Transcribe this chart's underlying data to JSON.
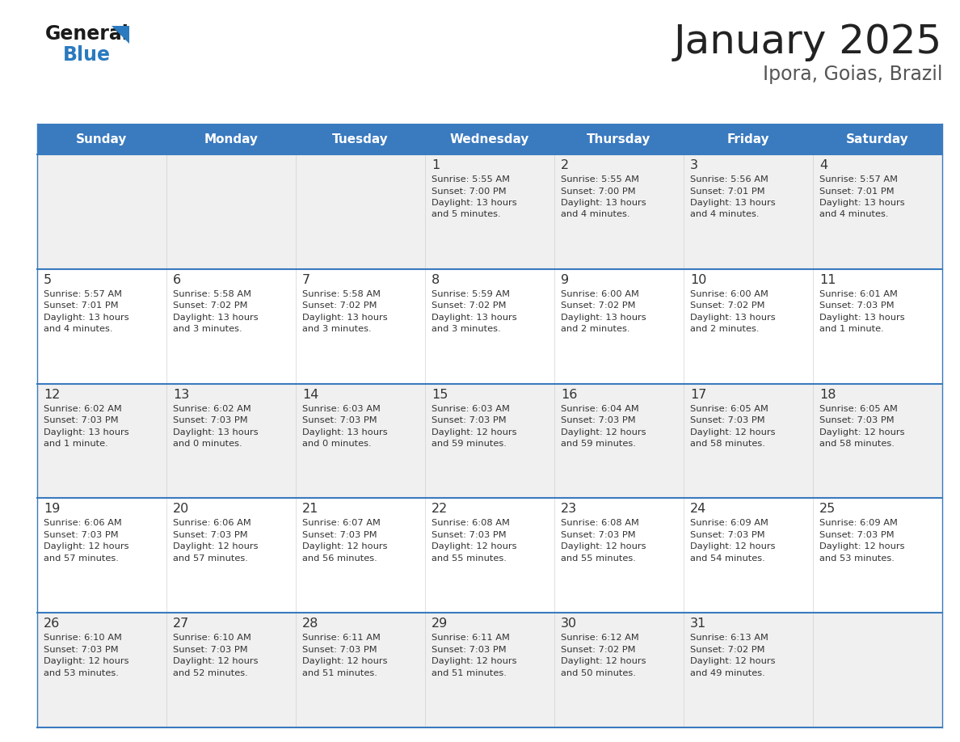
{
  "title": "January 2025",
  "subtitle": "Ipora, Goias, Brazil",
  "days_of_week": [
    "Sunday",
    "Monday",
    "Tuesday",
    "Wednesday",
    "Thursday",
    "Friday",
    "Saturday"
  ],
  "header_bg": "#3a7abf",
  "header_text": "#ffffff",
  "row_bg_odd": "#f0f0f0",
  "row_bg_even": "#ffffff",
  "cell_border_color": "#3a7abf",
  "day_num_color": "#333333",
  "info_text_color": "#333333",
  "title_color": "#222222",
  "subtitle_color": "#555555",
  "calendar_data": [
    [
      null,
      null,
      null,
      {
        "day": 1,
        "sunrise": "5:55 AM",
        "sunset": "7:00 PM",
        "daylight_h": "13 hours",
        "daylight_m": "and 5 minutes."
      },
      {
        "day": 2,
        "sunrise": "5:55 AM",
        "sunset": "7:00 PM",
        "daylight_h": "13 hours",
        "daylight_m": "and 4 minutes."
      },
      {
        "day": 3,
        "sunrise": "5:56 AM",
        "sunset": "7:01 PM",
        "daylight_h": "13 hours",
        "daylight_m": "and 4 minutes."
      },
      {
        "day": 4,
        "sunrise": "5:57 AM",
        "sunset": "7:01 PM",
        "daylight_h": "13 hours",
        "daylight_m": "and 4 minutes."
      }
    ],
    [
      {
        "day": 5,
        "sunrise": "5:57 AM",
        "sunset": "7:01 PM",
        "daylight_h": "13 hours",
        "daylight_m": "and 4 minutes."
      },
      {
        "day": 6,
        "sunrise": "5:58 AM",
        "sunset": "7:02 PM",
        "daylight_h": "13 hours",
        "daylight_m": "and 3 minutes."
      },
      {
        "day": 7,
        "sunrise": "5:58 AM",
        "sunset": "7:02 PM",
        "daylight_h": "13 hours",
        "daylight_m": "and 3 minutes."
      },
      {
        "day": 8,
        "sunrise": "5:59 AM",
        "sunset": "7:02 PM",
        "daylight_h": "13 hours",
        "daylight_m": "and 3 minutes."
      },
      {
        "day": 9,
        "sunrise": "6:00 AM",
        "sunset": "7:02 PM",
        "daylight_h": "13 hours",
        "daylight_m": "and 2 minutes."
      },
      {
        "day": 10,
        "sunrise": "6:00 AM",
        "sunset": "7:02 PM",
        "daylight_h": "13 hours",
        "daylight_m": "and 2 minutes."
      },
      {
        "day": 11,
        "sunrise": "6:01 AM",
        "sunset": "7:03 PM",
        "daylight_h": "13 hours",
        "daylight_m": "and 1 minute."
      }
    ],
    [
      {
        "day": 12,
        "sunrise": "6:02 AM",
        "sunset": "7:03 PM",
        "daylight_h": "13 hours",
        "daylight_m": "and 1 minute."
      },
      {
        "day": 13,
        "sunrise": "6:02 AM",
        "sunset": "7:03 PM",
        "daylight_h": "13 hours",
        "daylight_m": "and 0 minutes."
      },
      {
        "day": 14,
        "sunrise": "6:03 AM",
        "sunset": "7:03 PM",
        "daylight_h": "13 hours",
        "daylight_m": "and 0 minutes."
      },
      {
        "day": 15,
        "sunrise": "6:03 AM",
        "sunset": "7:03 PM",
        "daylight_h": "12 hours",
        "daylight_m": "and 59 minutes."
      },
      {
        "day": 16,
        "sunrise": "6:04 AM",
        "sunset": "7:03 PM",
        "daylight_h": "12 hours",
        "daylight_m": "and 59 minutes."
      },
      {
        "day": 17,
        "sunrise": "6:05 AM",
        "sunset": "7:03 PM",
        "daylight_h": "12 hours",
        "daylight_m": "and 58 minutes."
      },
      {
        "day": 18,
        "sunrise": "6:05 AM",
        "sunset": "7:03 PM",
        "daylight_h": "12 hours",
        "daylight_m": "and 58 minutes."
      }
    ],
    [
      {
        "day": 19,
        "sunrise": "6:06 AM",
        "sunset": "7:03 PM",
        "daylight_h": "12 hours",
        "daylight_m": "and 57 minutes."
      },
      {
        "day": 20,
        "sunrise": "6:06 AM",
        "sunset": "7:03 PM",
        "daylight_h": "12 hours",
        "daylight_m": "and 57 minutes."
      },
      {
        "day": 21,
        "sunrise": "6:07 AM",
        "sunset": "7:03 PM",
        "daylight_h": "12 hours",
        "daylight_m": "and 56 minutes."
      },
      {
        "day": 22,
        "sunrise": "6:08 AM",
        "sunset": "7:03 PM",
        "daylight_h": "12 hours",
        "daylight_m": "and 55 minutes."
      },
      {
        "day": 23,
        "sunrise": "6:08 AM",
        "sunset": "7:03 PM",
        "daylight_h": "12 hours",
        "daylight_m": "and 55 minutes."
      },
      {
        "day": 24,
        "sunrise": "6:09 AM",
        "sunset": "7:03 PM",
        "daylight_h": "12 hours",
        "daylight_m": "and 54 minutes."
      },
      {
        "day": 25,
        "sunrise": "6:09 AM",
        "sunset": "7:03 PM",
        "daylight_h": "12 hours",
        "daylight_m": "and 53 minutes."
      }
    ],
    [
      {
        "day": 26,
        "sunrise": "6:10 AM",
        "sunset": "7:03 PM",
        "daylight_h": "12 hours",
        "daylight_m": "and 53 minutes."
      },
      {
        "day": 27,
        "sunrise": "6:10 AM",
        "sunset": "7:03 PM",
        "daylight_h": "12 hours",
        "daylight_m": "and 52 minutes."
      },
      {
        "day": 28,
        "sunrise": "6:11 AM",
        "sunset": "7:03 PM",
        "daylight_h": "12 hours",
        "daylight_m": "and 51 minutes."
      },
      {
        "day": 29,
        "sunrise": "6:11 AM",
        "sunset": "7:03 PM",
        "daylight_h": "12 hours",
        "daylight_m": "and 51 minutes."
      },
      {
        "day": 30,
        "sunrise": "6:12 AM",
        "sunset": "7:02 PM",
        "daylight_h": "12 hours",
        "daylight_m": "and 50 minutes."
      },
      {
        "day": 31,
        "sunrise": "6:13 AM",
        "sunset": "7:02 PM",
        "daylight_h": "12 hours",
        "daylight_m": "and 49 minutes."
      },
      null
    ]
  ]
}
